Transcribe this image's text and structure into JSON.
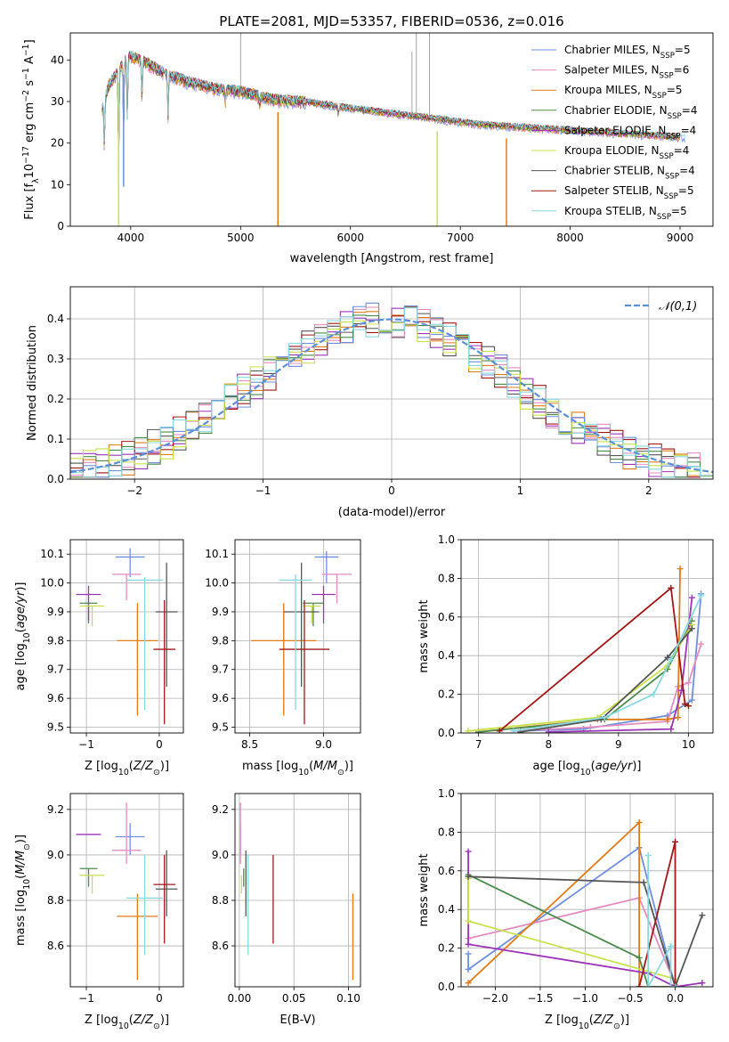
{
  "figure": {
    "title": "PLATE=2081, MJD=53357, FIBERID=0536, z=0.016"
  },
  "series": [
    {
      "name": "Chabrier MILES",
      "nssp": "5",
      "color": "#6f8fdc"
    },
    {
      "name": "Salpeter MILES",
      "nssp": "6",
      "color": "#e38cbf"
    },
    {
      "name": "Kroupa MILES",
      "nssp": "5",
      "color": "#e07b1a"
    },
    {
      "name": "Chabrier ELODIE",
      "nssp": "4",
      "color": "#4c8a4c"
    },
    {
      "name": "Salpeter ELODIE",
      "nssp": "4",
      "color": "#9b35b5"
    },
    {
      "name": "Kroupa ELODIE",
      "nssp": "4",
      "color": "#c8e04a"
    },
    {
      "name": "Chabrier STELIB",
      "nssp": "4",
      "color": "#555555"
    },
    {
      "name": "Salpeter STELIB",
      "nssp": "5",
      "color": "#a01818"
    },
    {
      "name": "Kroupa STELIB",
      "nssp": "5",
      "color": "#88d8df"
    }
  ],
  "chart_data": [
    {
      "id": "spectrum",
      "type": "line",
      "xlabel": "wavelength [Angstrom, rest frame]",
      "ylabel": "Flux [f_λ 10^-17 erg cm^-2 s^-1 A^-1]",
      "xlim": [
        3450,
        9300
      ],
      "ylim": [
        0,
        46.5
      ],
      "xticks": [
        4000,
        5000,
        6000,
        7000,
        8000,
        9000
      ],
      "yticks": [
        0,
        10,
        20,
        30,
        40
      ],
      "legend": "top-right",
      "continuum": {
        "x": [
          3740,
          3800,
          3900,
          3950,
          4000,
          4100,
          4200,
          4300,
          4500,
          4800,
          5000,
          5300,
          5600,
          6000,
          6300,
          6600,
          6900,
          7200,
          7500,
          7800,
          8100,
          8400,
          8700,
          9000,
          9050
        ],
        "y": [
          28,
          34,
          38,
          40,
          41,
          40,
          38.5,
          37,
          35,
          33,
          32.5,
          30.5,
          30,
          28.5,
          27.5,
          26.5,
          25.5,
          24.5,
          24,
          23.5,
          23,
          22.5,
          22,
          21.5,
          21.5
        ]
      },
      "absorption_lines": [
        {
          "x": 3760,
          "y": 18.5
        },
        {
          "x": 3890,
          "y": 12
        },
        {
          "x": 3935,
          "y": 22
        },
        {
          "x": 3969,
          "y": 25
        },
        {
          "x": 4102,
          "y": 30
        },
        {
          "x": 4340,
          "y": 26
        },
        {
          "x": 4861,
          "y": 30
        },
        {
          "x": 5175,
          "y": 29.5
        },
        {
          "x": 5890,
          "y": 27
        }
      ],
      "artifacts": [
        {
          "x": 3890,
          "y": 0
        },
        {
          "x": 3935,
          "y": 9.5
        },
        {
          "x": 5340,
          "y": 0
        },
        {
          "x": 6790,
          "y": 0
        },
        {
          "x": 7420,
          "y": 0
        }
      ],
      "spikes": [
        {
          "x": 5000,
          "y": 46.5
        },
        {
          "x": 6560,
          "y": 42
        },
        {
          "x": 6600,
          "y": 46.5
        },
        {
          "x": 6720,
          "y": 46.5
        }
      ]
    },
    {
      "id": "residuals",
      "type": "histogram",
      "xlabel": "(data-model)/error",
      "ylabel": "Normed distribution",
      "xlim": [
        -2.5,
        2.5
      ],
      "ylim": [
        0,
        0.48
      ],
      "xticks": [
        -2,
        -1,
        0,
        1,
        2
      ],
      "yticks": [
        0.0,
        0.1,
        0.2,
        0.3,
        0.4
      ],
      "legend_label": "𝒩(0,1)",
      "legend": "top-right",
      "bin_width": 0.1
    },
    {
      "id": "age-vs-Z",
      "type": "scatter",
      "xlabel": "Z [log10(Z/Z⊙)]",
      "ylabel": "age [log10(age/yr)]",
      "xlim": [
        -1.22,
        0.33
      ],
      "ylim": [
        9.48,
        10.15
      ],
      "xticks": [
        -1,
        0
      ],
      "yticks": [
        9.5,
        9.6,
        9.7,
        9.8,
        9.9,
        10.0,
        10.1
      ],
      "points": [
        {
          "s": 0,
          "x": -0.4,
          "y": 10.09,
          "xerr": 0.2,
          "yerr": [
            0.07,
            0.03
          ]
        },
        {
          "s": 1,
          "x": -0.45,
          "y": 10.03,
          "xerr": 0.2,
          "yerr": [
            0.09,
            0.0
          ]
        },
        {
          "s": 2,
          "x": -0.3,
          "y": 9.8,
          "xerr": 0.28,
          "yerr": [
            0.26,
            0.13
          ]
        },
        {
          "s": 3,
          "x": -0.97,
          "y": 9.93,
          "xerr": 0.12,
          "yerr": [
            0.07,
            0.0
          ]
        },
        {
          "s": 4,
          "x": -0.97,
          "y": 9.96,
          "xerr": 0.17,
          "yerr": [
            0.09,
            0.03
          ]
        },
        {
          "s": 5,
          "x": -0.92,
          "y": 9.92,
          "xerr": 0.17,
          "yerr": [
            0.07,
            0.0
          ]
        },
        {
          "s": 6,
          "x": 0.1,
          "y": 9.9,
          "xerr": 0.15,
          "yerr": [
            0.26,
            0.17
          ]
        },
        {
          "s": 7,
          "x": 0.07,
          "y": 9.77,
          "xerr": 0.15,
          "yerr": [
            0.26,
            0.17
          ]
        },
        {
          "s": 8,
          "x": -0.2,
          "y": 10.01,
          "xerr": 0.25,
          "yerr": [
            0.45,
            0.01
          ]
        }
      ]
    },
    {
      "id": "age-vs-mass",
      "type": "scatter",
      "xlabel": "mass [log10(M/M⊙)]",
      "ylabel": "",
      "xlim": [
        8.4,
        9.25
      ],
      "ylim": [
        9.48,
        10.15
      ],
      "xticks": [
        8.5,
        9.0
      ],
      "yticks": [
        9.5,
        9.6,
        9.7,
        9.8,
        9.9,
        10.0,
        10.1
      ],
      "points": [
        {
          "s": 0,
          "x": 9.02,
          "y": 10.09,
          "xerr": 0.08,
          "yerr": [
            0.09,
            0.02
          ]
        },
        {
          "s": 1,
          "x": 9.09,
          "y": 10.03,
          "xerr": 0.1,
          "yerr": [
            0.1,
            0.0
          ]
        },
        {
          "s": 2,
          "x": 8.73,
          "y": 9.8,
          "xerr": 0.22,
          "yerr": [
            0.26,
            0.13
          ]
        },
        {
          "s": 3,
          "x": 8.93,
          "y": 9.93,
          "xerr": 0.07,
          "yerr": [
            0.08,
            0.0
          ]
        },
        {
          "s": 4,
          "x": 9.0,
          "y": 9.96,
          "xerr": 0.08,
          "yerr": [
            0.1,
            0.03
          ]
        },
        {
          "s": 5,
          "x": 8.92,
          "y": 9.92,
          "xerr": 0.06,
          "yerr": [
            0.06,
            0.0
          ]
        },
        {
          "s": 6,
          "x": 8.85,
          "y": 9.9,
          "xerr": 0.12,
          "yerr": [
            0.26,
            0.17
          ]
        },
        {
          "s": 7,
          "x": 8.87,
          "y": 9.77,
          "xerr": 0.17,
          "yerr": [
            0.26,
            0.17
          ]
        },
        {
          "s": 8,
          "x": 8.81,
          "y": 10.01,
          "xerr": 0.11,
          "yerr": [
            0.45,
            0.02
          ]
        }
      ]
    },
    {
      "id": "mass-weight-vs-age",
      "type": "line",
      "xlabel": "age [log10(age/yr)]",
      "ylabel": "mass weight",
      "xlim": [
        6.75,
        10.35
      ],
      "ylim": [
        0,
        1.0
      ],
      "xticks": [
        7,
        8,
        9,
        10
      ],
      "yticks": [
        0.0,
        0.2,
        0.4,
        0.6,
        0.8,
        1.0
      ],
      "lines": [
        {
          "s": 0,
          "x": [
            7.5,
            8.5,
            9.7,
            10.05,
            10.18
          ],
          "y": [
            0.01,
            0.02,
            0.09,
            0.17,
            0.72
          ]
        },
        {
          "s": 1,
          "x": [
            7.5,
            8.6,
            9.7,
            9.85,
            10.0,
            10.18
          ],
          "y": [
            0.01,
            0.03,
            0.06,
            0.24,
            0.26,
            0.46
          ]
        },
        {
          "s": 2,
          "x": [
            7.0,
            8.7,
            9.7,
            9.85,
            9.88
          ],
          "y": [
            0.005,
            0.07,
            0.07,
            0.08,
            0.85
          ]
        },
        {
          "s": 3,
          "x": [
            7.0,
            8.8,
            9.7,
            10.05
          ],
          "y": [
            0.005,
            0.07,
            0.33,
            0.58
          ]
        },
        {
          "s": 4,
          "x": [
            8.0,
            9.75,
            9.9,
            10.05
          ],
          "y": [
            0.005,
            0.02,
            0.22,
            0.7
          ]
        },
        {
          "s": 5,
          "x": [
            6.85,
            8.7,
            9.7,
            10.05
          ],
          "y": [
            0.01,
            0.08,
            0.35,
            0.56
          ]
        },
        {
          "s": 6,
          "x": [
            7.6,
            8.75,
            9.7,
            10.05
          ],
          "y": [
            0.005,
            0.07,
            0.39,
            0.54
          ]
        },
        {
          "s": 7,
          "x": [
            7.3,
            9.75,
            9.95,
            10.0
          ],
          "y": [
            0.01,
            0.75,
            0.15,
            0.14
          ]
        },
        {
          "s": 8,
          "x": [
            7.5,
            8.8,
            9.5,
            9.75,
            10.18
          ],
          "y": [
            0.01,
            0.08,
            0.2,
            0.38,
            0.71
          ]
        }
      ]
    },
    {
      "id": "mass-vs-Z",
      "type": "scatter",
      "xlabel": "Z [log10(Z/Z⊙)]",
      "ylabel": "mass [log10(M/M⊙)]",
      "xlim": [
        -1.22,
        0.33
      ],
      "ylim": [
        8.42,
        9.27
      ],
      "xticks": [
        -1,
        0
      ],
      "yticks": [
        8.6,
        8.8,
        9.0,
        9.2
      ],
      "points": [
        {
          "s": 0,
          "x": -0.4,
          "y": 9.08,
          "xerr": 0.2,
          "yerr": [
            0.08,
            0.06
          ]
        },
        {
          "s": 1,
          "x": -0.45,
          "y": 9.02,
          "xerr": 0.2,
          "yerr": [
            0.06,
            0.21
          ]
        },
        {
          "s": 2,
          "x": -0.3,
          "y": 8.73,
          "xerr": 0.28,
          "yerr": [
            0.28,
            0.1
          ]
        },
        {
          "s": 3,
          "x": -0.97,
          "y": 8.94,
          "xerr": 0.12,
          "yerr": [
            0.08,
            0.0
          ]
        },
        {
          "s": 4,
          "x": -0.97,
          "y": 9.09,
          "xerr": 0.17,
          "yerr": [
            0.0,
            0.0
          ]
        },
        {
          "s": 5,
          "x": -0.92,
          "y": 8.91,
          "xerr": 0.17,
          "yerr": [
            0.08,
            0.0
          ]
        },
        {
          "s": 6,
          "x": 0.1,
          "y": 8.85,
          "xerr": 0.15,
          "yerr": [
            0.12,
            0.17
          ]
        },
        {
          "s": 7,
          "x": 0.07,
          "y": 8.87,
          "xerr": 0.15,
          "yerr": [
            0.26,
            0.13
          ]
        },
        {
          "s": 8,
          "x": -0.2,
          "y": 8.81,
          "xerr": 0.25,
          "yerr": [
            0.25,
            0.19
          ]
        }
      ]
    },
    {
      "id": "mass-vs-ebv",
      "type": "scatter",
      "xlabel": "E(B-V)",
      "ylabel": "",
      "xlim": [
        -0.004,
        0.111
      ],
      "ylim": [
        8.42,
        9.27
      ],
      "xticks": [
        0.0,
        0.05,
        0.1
      ],
      "yticks": [
        8.6,
        8.8,
        9.0,
        9.2
      ],
      "points": [
        {
          "s": 0,
          "x": 0.001,
          "y": 9.08,
          "xerr": 0.0,
          "yerr": [
            0.08,
            0.06
          ]
        },
        {
          "s": 1,
          "x": 0.001,
          "y": 9.02,
          "xerr": 0.0,
          "yerr": [
            0.06,
            0.21
          ]
        },
        {
          "s": 2,
          "x": 0.104,
          "y": 8.73,
          "xerr": 0.0,
          "yerr": [
            0.28,
            0.1
          ]
        },
        {
          "s": 3,
          "x": 0.004,
          "y": 8.94,
          "xerr": 0.0,
          "yerr": [
            0.08,
            0.0
          ]
        },
        {
          "s": 4,
          "x": 0.001,
          "y": 9.09,
          "xerr": 0.0,
          "yerr": [
            0.0,
            0.0
          ]
        },
        {
          "s": 5,
          "x": 0.002,
          "y": 8.91,
          "xerr": 0.0,
          "yerr": [
            0.08,
            0.0
          ]
        },
        {
          "s": 6,
          "x": 0.006,
          "y": 8.85,
          "xerr": 0.0,
          "yerr": [
            0.12,
            0.17
          ]
        },
        {
          "s": 7,
          "x": 0.031,
          "y": 8.87,
          "xerr": 0.0,
          "yerr": [
            0.26,
            0.13
          ]
        },
        {
          "s": 8,
          "x": 0.008,
          "y": 8.81,
          "xerr": 0.0,
          "yerr": [
            0.25,
            0.19
          ]
        }
      ]
    },
    {
      "id": "mass-weight-vs-Z",
      "type": "line",
      "xlabel": "Z [log10(Z/Z⊙)]",
      "ylabel": "mass weight",
      "xlim": [
        -2.38,
        0.42
      ],
      "ylim": [
        0,
        1.0
      ],
      "xticks": [
        -2.0,
        -1.5,
        -1.0,
        -0.5,
        0.0
      ],
      "yticks": [
        0.0,
        0.2,
        0.4,
        0.6,
        0.8,
        1.0
      ],
      "lines": [
        {
          "s": 0,
          "x": [
            -2.3,
            -2.3,
            -0.4,
            0.0
          ],
          "y": [
            0.17,
            0.09,
            0.72,
            0.0
          ]
        },
        {
          "s": 1,
          "x": [
            -2.3,
            -0.4,
            0.0
          ],
          "y": [
            0.25,
            0.46,
            0.01
          ]
        },
        {
          "s": 2,
          "x": [
            -2.3,
            -0.4,
            -0.4,
            0.0
          ],
          "y": [
            0.02,
            0.85,
            0.0,
            0.0
          ]
        },
        {
          "s": 3,
          "x": [
            -2.3,
            -0.4,
            -0.3,
            0.0
          ],
          "y": [
            0.58,
            0.15,
            0.0,
            0.0
          ]
        },
        {
          "s": 4,
          "x": [
            -2.3,
            -2.3,
            -0.3,
            0.0,
            0.3
          ],
          "y": [
            0.7,
            0.22,
            0.07,
            0.0,
            0.02
          ]
        },
        {
          "s": 5,
          "x": [
            -2.3,
            -2.3,
            0.0
          ],
          "y": [
            0.56,
            0.34,
            0.04
          ]
        },
        {
          "s": 6,
          "x": [
            -2.3,
            -0.35,
            0.0,
            0.3
          ],
          "y": [
            0.57,
            0.54,
            0.0,
            0.37
          ]
        },
        {
          "s": 7,
          "x": [
            -0.4,
            0.0,
            0.0,
            -0.05
          ],
          "y": [
            0.0,
            0.75,
            0.0,
            0.0
          ]
        },
        {
          "s": 8,
          "x": [
            -0.3,
            -0.3,
            -0.05,
            -0.05,
            0.0
          ],
          "y": [
            0.68,
            0.0,
            0.21,
            0.0,
            0.0
          ]
        }
      ]
    }
  ]
}
